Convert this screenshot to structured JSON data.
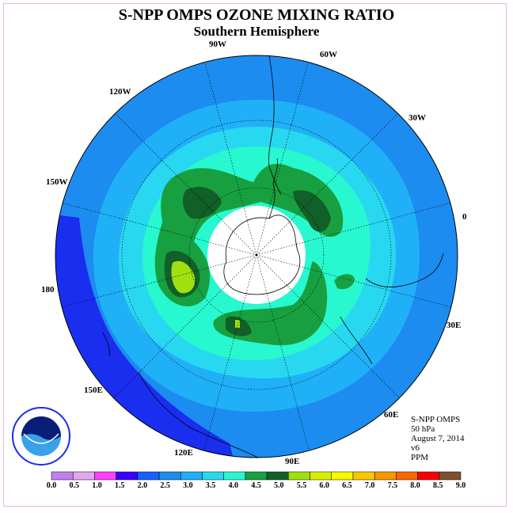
{
  "title": "S-NPP OMPS OZONE MIXING RATIO",
  "subtitle": "Southern Hemisphere",
  "longitude_labels": [
    "90W",
    "60W",
    "30W",
    "0",
    "30E",
    "60E",
    "90E",
    "120E",
    "150E",
    "180",
    "150W",
    "120W"
  ],
  "info": {
    "instrument": "S-NPP OMPS",
    "pressure": "50 hPa",
    "date": "August 7, 2014",
    "version": "v6",
    "units": "PPM"
  },
  "logo_text": "NOAA",
  "colorbar": {
    "ticks": [
      "0.0",
      "0.5",
      "1.0",
      "1.5",
      "2.0",
      "2.5",
      "3.0",
      "3.5",
      "4.0",
      "4.5",
      "5.0",
      "5.5",
      "6.0",
      "6.5",
      "7.0",
      "7.5",
      "8.0",
      "8.5",
      "9.0"
    ],
    "colors": [
      "#c080f0",
      "#e0a8f0",
      "#ff40ff",
      "#3a00ff",
      "#1560ff",
      "#1c8cf0",
      "#20b0f8",
      "#28d8f0",
      "#28f8d0",
      "#18a040",
      "#106028",
      "#a0e010",
      "#d8f000",
      "#f8f800",
      "#f8c800",
      "#f89800",
      "#f86800",
      "#f80000",
      "#805030"
    ]
  }
}
